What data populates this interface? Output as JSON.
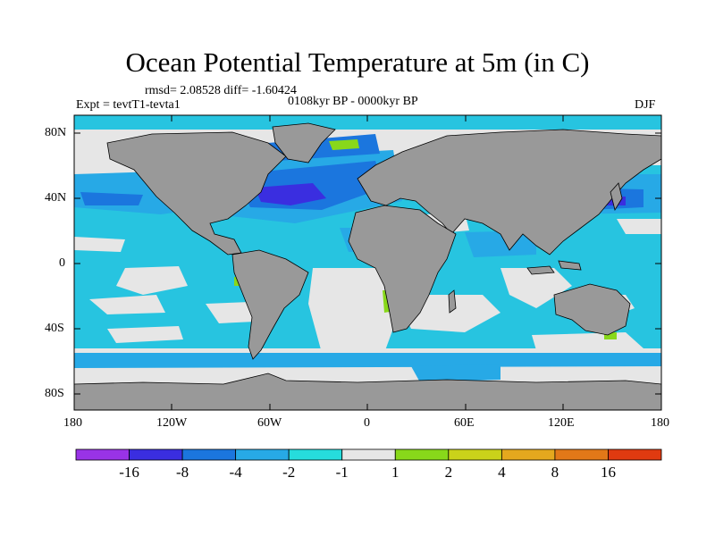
{
  "title": "Ocean Potential Temperature at 5m (in C)",
  "stats": "rmsd= 2.08528 diff= -1.60424",
  "experiment": "Expt = tevtT1-tevta1",
  "period": "0108kyr BP - 0000kyr BP",
  "season": "DJF",
  "lat_labels": [
    "80N",
    "40N",
    "0",
    "40S",
    "80S"
  ],
  "lon_labels": [
    "180",
    "120W",
    "60W",
    "0",
    "60E",
    "120E",
    "180"
  ],
  "colorbar": {
    "boxes": [
      "#9933e6",
      "#3a2ee0",
      "#1b76de",
      "#27a9e6",
      "#26dcdc",
      "#e6e6e6",
      "#88d81a",
      "#cad21a",
      "#e4a81e",
      "#e27818",
      "#e03a10"
    ],
    "labels": [
      "-16",
      "-8",
      "-4",
      "-2",
      "-1",
      "1",
      "2",
      "4",
      "8",
      "16"
    ]
  },
  "colors": {
    "land": "#999999",
    "ocean_base": "#27c4e0",
    "near_zero": "#e6e6e6",
    "cool_mid": "#27a9e6",
    "cool_strong": "#1b76de",
    "cool_extreme": "#3a2ee0",
    "warm_small": "#88d81a"
  }
}
